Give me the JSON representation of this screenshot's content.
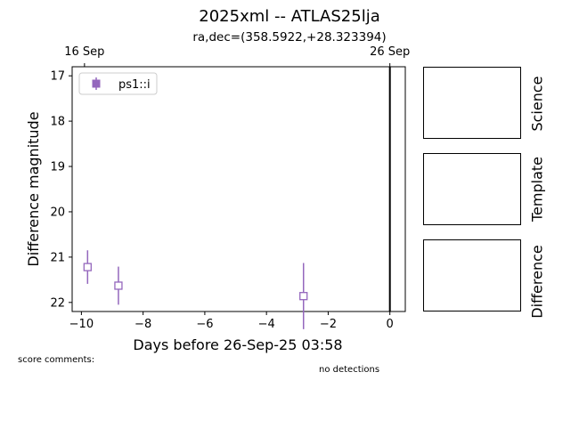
{
  "title": "2025xml -- ATLAS25lja",
  "subtitle": "ra,dec=(358.5922,+28.323394)",
  "score_comments_label": "score comments:",
  "detections_note": "no detections",
  "stamps": [
    {
      "label": "Science"
    },
    {
      "label": "Template"
    },
    {
      "label": "Difference"
    }
  ],
  "chart_data": {
    "type": "scatter",
    "xlabel": "Days before 26-Sep-25 03:58",
    "ylabel": "Difference magnitude",
    "xlim": [
      -10.3,
      0.5
    ],
    "ylim": [
      22.2,
      16.8
    ],
    "y_inverted": true,
    "xticks": [
      -10,
      -8,
      -6,
      -4,
      -2,
      0
    ],
    "yticks": [
      17,
      18,
      19,
      20,
      21,
      22
    ],
    "top_ticks": [
      {
        "x": -9.9,
        "label": "16 Sep"
      },
      {
        "x": 0,
        "label": "26 Sep"
      }
    ],
    "reference_line_x": 0,
    "legend_position": "upper left",
    "series": [
      {
        "name": "ps1::i",
        "color": "#9467bd",
        "marker": "open-square",
        "points": [
          {
            "x": -9.8,
            "y": 21.22,
            "err": 0.37
          },
          {
            "x": -8.8,
            "y": 21.63,
            "err": 0.42
          },
          {
            "x": -2.8,
            "y": 21.86,
            "err": 0.73
          }
        ]
      }
    ]
  }
}
